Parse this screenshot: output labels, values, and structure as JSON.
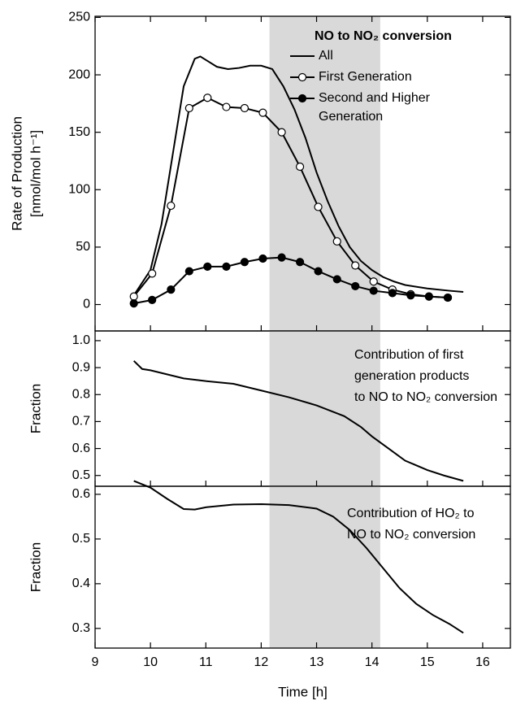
{
  "chart_data": [
    {
      "type": "line",
      "ylabel": [
        "Rate of Production",
        "[nmol/mol h⁻¹]"
      ],
      "xlim": [
        9,
        16.5
      ],
      "xticks": [
        9,
        10,
        11,
        12,
        13,
        14,
        15,
        16
      ],
      "xtick_labels": false,
      "ylim": [
        -23,
        251
      ],
      "yticks": [
        0,
        50,
        100,
        150,
        200,
        250
      ],
      "shaded_x": [
        12.15,
        14.15
      ],
      "legend_title": "NO to NO₂ conversion",
      "series": [
        {
          "name": "All",
          "color": "#000000",
          "marker": "none",
          "x": [
            9.7,
            10,
            10.2,
            10.4,
            10.6,
            10.8,
            10.9,
            11,
            11.2,
            11.4,
            11.6,
            11.8,
            12,
            12.2,
            12.4,
            12.6,
            12.8,
            13,
            13.2,
            13.4,
            13.6,
            13.8,
            14,
            14.2,
            14.4,
            14.6,
            15,
            15.4,
            15.65
          ],
          "values": [
            8,
            30,
            70,
            130,
            190,
            214,
            216,
            213,
            207,
            205,
            206,
            208,
            208,
            205,
            190,
            170,
            145,
            115,
            90,
            68,
            50,
            38,
            30,
            24,
            20,
            17,
            14,
            12,
            11
          ]
        },
        {
          "name": "First Generation",
          "color": "#000000",
          "marker": "open",
          "x": [
            9.7,
            10.03,
            10.37,
            10.7,
            11.03,
            11.37,
            11.7,
            12.03,
            12.37,
            12.7,
            13.03,
            13.37,
            13.7,
            14.03,
            14.37,
            14.7,
            15.03,
            15.37
          ],
          "values": [
            7,
            27,
            86,
            171,
            180,
            172,
            171,
            167,
            150,
            120,
            85,
            55,
            34,
            20,
            13,
            9,
            7,
            6
          ]
        },
        {
          "name": "Second and Higher Generation",
          "color": "#000000",
          "marker": "filled",
          "x": [
            9.7,
            10.03,
            10.37,
            10.7,
            11.03,
            11.37,
            11.7,
            12.03,
            12.37,
            12.7,
            13.03,
            13.37,
            13.7,
            14.03,
            14.37,
            14.7,
            15.03,
            15.37
          ],
          "values": [
            1,
            4,
            13,
            29,
            33,
            33,
            37,
            40,
            41,
            37,
            29,
            22,
            16,
            12,
            10,
            8,
            7,
            6
          ]
        }
      ]
    },
    {
      "type": "line",
      "ylabel": [
        "Fraction"
      ],
      "xlim": [
        9,
        16.5
      ],
      "xticks": [
        9,
        10,
        11,
        12,
        13,
        14,
        15,
        16
      ],
      "xtick_labels": false,
      "ylim": [
        0.46,
        1.036
      ],
      "yticks": [
        0.5,
        0.6,
        0.7,
        0.8,
        0.9,
        {
          "value": 1,
          "label": "1.0"
        }
      ],
      "shaded_x": [
        12.15,
        14.15
      ],
      "annotation": [
        "Contribution of first",
        "generation products",
        "to NO to NO₂ conversion"
      ],
      "series": [
        {
          "color": "#000000",
          "marker": "none",
          "x": [
            9.7,
            9.85,
            10,
            10.3,
            10.6,
            11,
            11.5,
            12,
            12.5,
            13,
            13.5,
            13.8,
            14,
            14.3,
            14.6,
            15,
            15.3,
            15.65
          ],
          "values": [
            0.925,
            0.895,
            0.89,
            0.875,
            0.86,
            0.85,
            0.84,
            0.815,
            0.79,
            0.76,
            0.72,
            0.68,
            0.645,
            0.6,
            0.555,
            0.52,
            0.5,
            0.48
          ]
        }
      ]
    },
    {
      "type": "line",
      "ylabel": [
        "Fraction"
      ],
      "xlabel": "Time [h]",
      "xlim": [
        9,
        16.5
      ],
      "xticks": [
        9,
        10,
        11,
        12,
        13,
        14,
        15,
        16
      ],
      "xtick_labels": true,
      "ylim": [
        0.256,
        0.618
      ],
      "yticks": [
        0.3,
        0.4,
        0.5,
        0.6
      ],
      "shaded_x": [
        12.15,
        14.15
      ],
      "annotation": [
        "Contribution of HO₂ to",
        "NO to NO₂ conversion"
      ],
      "series": [
        {
          "color": "#000000",
          "marker": "none",
          "x": [
            9.7,
            10,
            10.3,
            10.6,
            10.8,
            11,
            11.5,
            12,
            12.5,
            13,
            13.3,
            13.6,
            13.9,
            14.2,
            14.5,
            14.8,
            15.1,
            15.4,
            15.65
          ],
          "values": [
            0.63,
            0.615,
            0.59,
            0.567,
            0.566,
            0.571,
            0.577,
            0.578,
            0.576,
            0.568,
            0.55,
            0.52,
            0.48,
            0.435,
            0.39,
            0.355,
            0.33,
            0.31,
            0.29
          ]
        }
      ]
    }
  ]
}
